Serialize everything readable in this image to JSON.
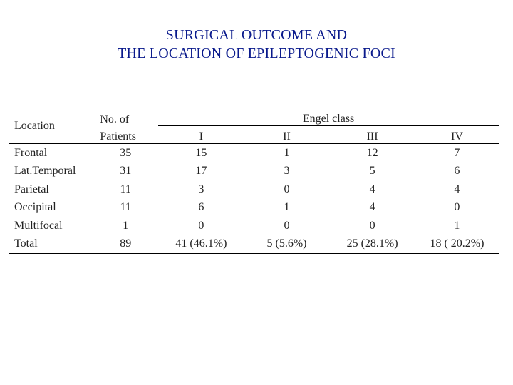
{
  "title": {
    "line1": "SURGICAL OUTCOME AND",
    "line2": "THE LOCATION OF EPILEPTOGENIC FOCI"
  },
  "table": {
    "header": {
      "location": "Location",
      "patients_line1": "No. of",
      "patients_line2": "Patients",
      "engel": "Engel class",
      "classes": [
        "I",
        "II",
        "III",
        "IV"
      ]
    },
    "rows": [
      {
        "location": "Frontal",
        "patients": "35",
        "I": "15",
        "II": "1",
        "III": "12",
        "IV": "7"
      },
      {
        "location": "Lat.Temporal",
        "patients": "31",
        "I": "17",
        "II": "3",
        "III": "5",
        "IV": "6"
      },
      {
        "location": "Parietal",
        "patients": "11",
        "I": "3",
        "II": "0",
        "III": "4",
        "IV": "4"
      },
      {
        "location": "Occipital",
        "patients": "11",
        "I": "6",
        "II": "1",
        "III": "4",
        "IV": "0"
      },
      {
        "location": "Multifocal",
        "patients": "1",
        "I": "0",
        "II": "0",
        "III": "0",
        "IV": "1"
      },
      {
        "location": "Total",
        "patients": "89",
        "I": "41 (46.1%)",
        "II": "5 (5.6%)",
        "III": "25 (28.1%)",
        "IV": "18 ( 20.2%)"
      }
    ]
  }
}
